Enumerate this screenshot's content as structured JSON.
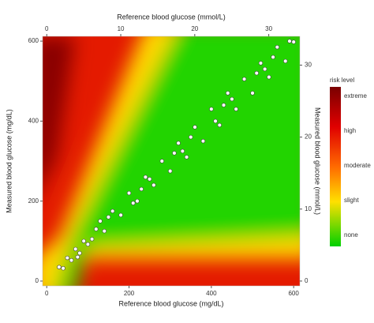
{
  "chart_data": {
    "type": "scatter",
    "x_label": "Reference blood glucose (mg/dL)",
    "x2_label": "Reference blood glucose (mmol/L)",
    "y_label": "Measured blood glucose (mg/dL)",
    "y2_label": "Measured blood glucose (mmol/L)",
    "xlim": [
      -10,
      615
    ],
    "xticks": [
      0,
      200,
      400,
      600
    ],
    "x2lim": [
      -0.56,
      34.2
    ],
    "x2ticks": [
      0,
      10,
      20,
      30
    ],
    "ylim": [
      -12,
      612
    ],
    "yticks": [
      0,
      200,
      400,
      600
    ],
    "y2lim": [
      -0.67,
      34
    ],
    "y2ticks": [
      0,
      10,
      20,
      30
    ],
    "legend": {
      "title": "risk level",
      "labels": [
        "extreme",
        "high",
        "moderate",
        "slight",
        "none"
      ]
    },
    "series": [
      {
        "color": "#ffffff",
        "x": [
          30,
          40,
          50,
          60,
          70,
          80,
          90,
          100,
          120,
          140,
          160,
          180,
          200,
          220,
          240,
          260,
          280,
          300,
          320,
          340,
          360,
          380,
          400,
          420,
          440,
          460,
          480,
          500,
          520,
          540,
          560,
          580,
          600,
          150,
          250,
          350,
          450,
          550,
          110,
          210,
          310,
          410,
          510,
          590,
          75,
          130,
          230,
          330,
          430,
          530
        ],
        "values": [
          35,
          32,
          58,
          52,
          80,
          70,
          100,
          92,
          130,
          125,
          175,
          165,
          220,
          200,
          260,
          240,
          300,
          275,
          345,
          310,
          385,
          350,
          430,
          390,
          470,
          430,
          505,
          470,
          545,
          510,
          585,
          550,
          598,
          160,
          255,
          360,
          455,
          560,
          105,
          195,
          320,
          400,
          520,
          600,
          60,
          150,
          230,
          325,
          440,
          530
        ]
      }
    ]
  }
}
